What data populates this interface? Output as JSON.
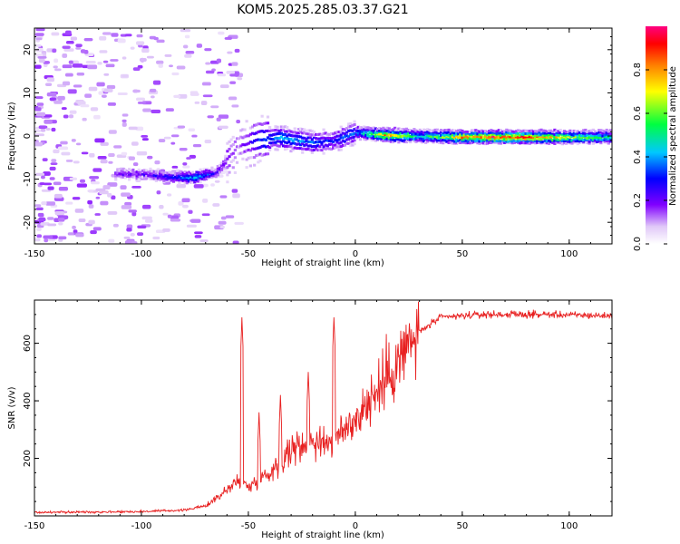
{
  "title": "KOM5.2025.285.03.37.G21",
  "chart_data": [
    {
      "type": "heatmap",
      "xlabel": "Height of straight line (km)",
      "ylabel": "Frequency (Hz)",
      "xlim": [
        -150,
        120
      ],
      "ylim": [
        -25,
        25
      ],
      "x_ticks": [
        -150,
        -100,
        -50,
        0,
        50,
        100
      ],
      "y_ticks": [
        -20,
        -10,
        0,
        10,
        20
      ],
      "colorbar": {
        "label": "Normalized spectral amplitude",
        "range": [
          0,
          1
        ],
        "ticks": [
          0.0,
          0.2,
          0.4,
          0.6,
          0.8
        ],
        "tick_labels": [
          "0.0",
          "0.2",
          "0.4",
          "0.6",
          "0.8"
        ]
      },
      "ridge": {
        "description_points": [
          {
            "x": -110,
            "freq": -8.8,
            "amp": 0.18
          },
          {
            "x": -100,
            "freq": -8.8,
            "amp": 0.18
          },
          {
            "x": -85,
            "freq": -9.5,
            "amp": 0.3
          },
          {
            "x": -75,
            "freq": -9.6,
            "amp": 0.45
          },
          {
            "x": -65,
            "freq": -8.5,
            "amp": 0.25
          },
          {
            "x": -55,
            "freq": -2.5,
            "amp": 0.12
          },
          {
            "x": -45,
            "freq": -0.8,
            "amp": 0.3
          },
          {
            "x": -35,
            "freq": -0.4,
            "amp": 0.4
          },
          {
            "x": -20,
            "freq": -1.5,
            "amp": 0.35
          },
          {
            "x": -10,
            "freq": -1.2,
            "amp": 0.3
          },
          {
            "x": 0,
            "freq": 0.8,
            "amp": 0.35
          },
          {
            "x": 15,
            "freq": 0.2,
            "amp": 0.8
          },
          {
            "x": 30,
            "freq": 0.0,
            "amp": 0.45
          },
          {
            "x": 50,
            "freq": -0.2,
            "amp": 0.8
          },
          {
            "x": 80,
            "freq": -0.2,
            "amp": 0.9
          },
          {
            "x": 100,
            "freq": -0.3,
            "amp": 0.65
          },
          {
            "x": 120,
            "freq": -0.2,
            "amp": 0.5
          }
        ]
      }
    },
    {
      "type": "line",
      "xlabel": "Height of straight line (km)",
      "ylabel": "SNR (v/v)",
      "xlim": [
        -150,
        120
      ],
      "ylim": [
        0,
        750
      ],
      "x_ticks": [
        -150,
        -100,
        -50,
        0,
        50,
        100
      ],
      "y_ticks": [
        200,
        400,
        600
      ],
      "series": [
        {
          "name": "SNR",
          "color": "#e82020",
          "trend": [
            {
              "x": -150,
              "y": 12
            },
            {
              "x": -100,
              "y": 15
            },
            {
              "x": -80,
              "y": 20
            },
            {
              "x": -70,
              "y": 35
            },
            {
              "x": -60,
              "y": 90
            },
            {
              "x": -55,
              "y": 120
            },
            {
              "x": -50,
              "y": 100
            },
            {
              "x": -40,
              "y": 150
            },
            {
              "x": -30,
              "y": 230
            },
            {
              "x": -20,
              "y": 260
            },
            {
              "x": -10,
              "y": 260
            },
            {
              "x": 0,
              "y": 340
            },
            {
              "x": 10,
              "y": 430
            },
            {
              "x": 20,
              "y": 540
            },
            {
              "x": 30,
              "y": 640
            },
            {
              "x": 40,
              "y": 690
            },
            {
              "x": 60,
              "y": 700
            },
            {
              "x": 90,
              "y": 700
            },
            {
              "x": 120,
              "y": 695
            }
          ],
          "spikes": [
            {
              "x": -53,
              "y": 690
            },
            {
              "x": -10,
              "y": 690
            },
            {
              "x": -22,
              "y": 500
            },
            {
              "x": -35,
              "y": 420
            },
            {
              "x": -45,
              "y": 360
            }
          ]
        }
      ]
    }
  ]
}
